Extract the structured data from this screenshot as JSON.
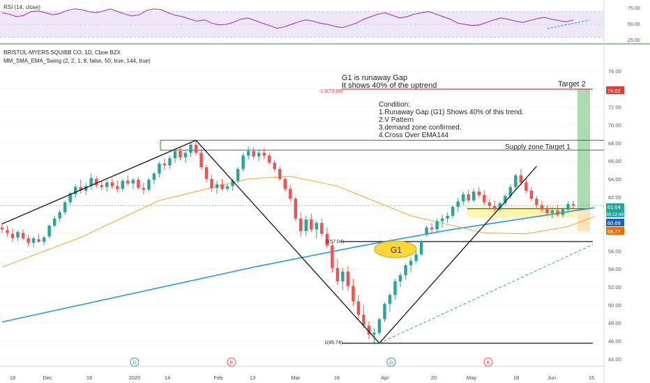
{
  "rsi_panel": {
    "label": "RSI (14, close)",
    "ticks": [
      "75.00",
      "50.00",
      "25.00"
    ],
    "ylim": [
      25,
      78
    ],
    "band": [
      30,
      70
    ],
    "values": [
      68,
      66,
      62,
      64,
      70,
      71,
      68,
      65,
      67,
      72,
      74,
      73,
      70,
      68,
      71,
      74,
      70,
      66,
      63,
      65,
      72,
      74,
      73,
      68,
      64,
      62,
      58,
      55,
      57,
      52,
      49,
      50,
      53,
      58,
      60,
      56,
      52,
      48,
      44,
      46,
      50,
      54,
      57,
      55,
      52,
      50,
      47,
      45,
      48,
      52,
      58,
      62,
      66,
      68,
      64,
      60,
      62,
      66,
      68,
      70,
      66,
      62,
      58,
      52,
      50,
      48,
      49,
      53,
      57,
      60,
      58,
      55,
      53,
      56,
      59,
      61,
      58,
      56,
      54,
      57
    ]
  },
  "header": {
    "symbol": "BRISTOL-MYERS SQUIBB CO, 1D, Cboe BZX",
    "indicator": "MM_SMA_EMA_Swing (2, 2, 1, 8, false, 50, true, 144, true)"
  },
  "annotations": {
    "gap_line1": "G1 is runaway Gap",
    "gap_line2": "It shows 40% of the uptrend",
    "target2": "Target 2",
    "fib_neg": "-1.5(73.98)",
    "condition_title": "Condition:",
    "cond1": "1.Runaway Gap (G1) Shows 40% of this trend.",
    "cond2": "2.V Pattern",
    "cond3": "3.demand zone confirmed.",
    "cond4": "4.Cross Over EMA144",
    "supply": "Supply zone Target 1",
    "fib0": "0(57.04)",
    "fib1": "1(45.74)",
    "g1": "G1"
  },
  "price_badges": {
    "target": "74.02",
    "last": "61.04",
    "countdown": "05:12:49",
    "ma": "60.69",
    "stop": "58.77"
  },
  "colors": {
    "bull": "#26a69a",
    "bear": "#ef5350",
    "ema144": "#2196f3",
    "sma50": "#f5a623",
    "rsi": "#9c27b0",
    "rsi_band": "#ede7f6",
    "target_line": "#e53935",
    "supply_line": "#2e7d32",
    "demand_zone": "#fff59d",
    "tp_zone": "#a5d6a7",
    "sl_zone": "#ffe0b2",
    "g1_fill": "#fdd835"
  },
  "chart_data": {
    "type": "candlestick",
    "ylim": [
      43,
      78.5
    ],
    "y_ticks": [
      "76.00",
      "74.00",
      "72.00",
      "70.00",
      "68.00",
      "66.00",
      "64.00",
      "62.00",
      "60.00",
      "58.00",
      "56.00",
      "54.00",
      "52.00",
      "50.00",
      "48.00",
      "46.00",
      "44.00"
    ],
    "x_ticks": [
      "18",
      "Dec",
      "16",
      "2020",
      "14",
      "Feb",
      "13",
      "Mar",
      "16",
      "Apr",
      "20",
      "May",
      "18",
      "Jun",
      "15"
    ],
    "events": [
      "D",
      "E",
      "E",
      "D",
      "E"
    ],
    "candles": [
      [
        58.6,
        59.2,
        58.0,
        58.4
      ],
      [
        58.3,
        58.8,
        57.6,
        58.0
      ],
      [
        57.9,
        58.5,
        57.0,
        57.4
      ],
      [
        57.5,
        58.3,
        57.1,
        58.1
      ],
      [
        58.0,
        58.4,
        57.2,
        57.4
      ],
      [
        57.4,
        57.8,
        56.5,
        56.9
      ],
      [
        56.9,
        57.6,
        56.4,
        57.4
      ],
      [
        57.3,
        57.9,
        56.9,
        57.0
      ],
      [
        57.0,
        57.7,
        56.6,
        57.5
      ],
      [
        57.6,
        58.9,
        57.4,
        58.8
      ],
      [
        58.8,
        59.9,
        58.6,
        59.6
      ],
      [
        59.6,
        60.6,
        59.2,
        60.3
      ],
      [
        60.3,
        61.6,
        60.0,
        61.4
      ],
      [
        61.4,
        62.6,
        61.1,
        62.4
      ],
      [
        62.3,
        63.4,
        61.9,
        63.1
      ],
      [
        63.1,
        63.9,
        62.4,
        62.7
      ],
      [
        62.7,
        63.6,
        62.2,
        63.2
      ],
      [
        63.2,
        64.6,
        62.8,
        64.1
      ],
      [
        64.0,
        64.3,
        63.0,
        63.3
      ],
      [
        63.3,
        63.8,
        62.7,
        63.1
      ],
      [
        63.1,
        63.9,
        62.6,
        63.6
      ],
      [
        63.6,
        64.1,
        62.9,
        63.2
      ],
      [
        63.2,
        63.8,
        62.5,
        62.9
      ],
      [
        62.9,
        64.0,
        62.6,
        63.8
      ],
      [
        63.8,
        64.4,
        63.2,
        63.5
      ],
      [
        63.5,
        64.1,
        62.9,
        63.9
      ],
      [
        63.9,
        64.2,
        62.8,
        63.0
      ],
      [
        63.0,
        63.6,
        62.3,
        62.8
      ],
      [
        62.8,
        64.1,
        62.6,
        63.9
      ],
      [
        63.9,
        64.8,
        63.4,
        64.6
      ],
      [
        64.6,
        65.9,
        64.2,
        65.7
      ],
      [
        65.7,
        66.3,
        65.0,
        65.5
      ],
      [
        65.5,
        66.6,
        65.1,
        66.3
      ],
      [
        66.3,
        67.3,
        65.8,
        67.1
      ],
      [
        67.1,
        67.6,
        66.1,
        66.4
      ],
      [
        66.4,
        67.2,
        65.8,
        66.9
      ],
      [
        66.9,
        68.1,
        66.4,
        67.8
      ],
      [
        67.8,
        68.2,
        66.6,
        66.9
      ],
      [
        66.9,
        67.3,
        65.1,
        65.3
      ],
      [
        65.3,
        65.6,
        63.6,
        64.0
      ],
      [
        64.0,
        64.5,
        62.6,
        63.0
      ],
      [
        63.0,
        63.8,
        62.3,
        63.4
      ],
      [
        63.4,
        64.0,
        62.7,
        62.9
      ],
      [
        62.9,
        63.4,
        62.6,
        63.2
      ],
      [
        63.2,
        64.0,
        62.7,
        63.8
      ],
      [
        63.8,
        65.3,
        63.5,
        65.1
      ],
      [
        65.1,
        66.9,
        64.8,
        66.6
      ],
      [
        66.6,
        67.6,
        66.1,
        67.1
      ],
      [
        67.1,
        67.5,
        66.2,
        66.5
      ],
      [
        66.5,
        67.3,
        66.0,
        66.9
      ],
      [
        66.9,
        67.4,
        66.2,
        66.6
      ],
      [
        66.6,
        66.9,
        65.6,
        65.8
      ],
      [
        65.8,
        66.1,
        64.8,
        65.1
      ],
      [
        65.1,
        65.4,
        63.8,
        64.0
      ],
      [
        64.0,
        64.2,
        62.6,
        62.9
      ],
      [
        62.9,
        63.3,
        61.5,
        61.8
      ],
      [
        61.8,
        62.0,
        59.3,
        59.6
      ],
      [
        59.6,
        60.3,
        57.6,
        58.2
      ],
      [
        58.2,
        59.9,
        57.7,
        59.5
      ],
      [
        59.5,
        60.1,
        58.1,
        58.4
      ],
      [
        58.4,
        59.4,
        57.4,
        59.1
      ],
      [
        59.1,
        59.6,
        57.6,
        57.9
      ],
      [
        57.9,
        58.6,
        56.3,
        56.6
      ],
      [
        56.6,
        56.9,
        53.6,
        54.1
      ],
      [
        54.1,
        55.1,
        52.2,
        52.6
      ],
      [
        52.6,
        54.1,
        51.6,
        53.7
      ],
      [
        53.7,
        54.3,
        51.6,
        52.1
      ],
      [
        52.1,
        52.9,
        49.9,
        50.4
      ],
      [
        50.4,
        51.1,
        48.4,
        48.9
      ],
      [
        48.9,
        49.9,
        47.4,
        47.7
      ],
      [
        47.7,
        48.2,
        46.2,
        46.7
      ],
      [
        46.7,
        47.4,
        45.8,
        46.9
      ],
      [
        46.9,
        48.6,
        46.6,
        48.4
      ],
      [
        48.4,
        50.3,
        48.1,
        50.1
      ],
      [
        50.1,
        51.3,
        49.3,
        51.1
      ],
      [
        51.1,
        52.9,
        50.6,
        52.6
      ],
      [
        52.6,
        53.6,
        52.0,
        53.3
      ],
      [
        53.3,
        54.6,
        52.8,
        54.4
      ],
      [
        54.4,
        55.3,
        53.6,
        54.9
      ],
      [
        54.9,
        55.9,
        54.6,
        55.6
      ],
      [
        55.6,
        57.3,
        55.4,
        57.1
      ],
      [
        57.8,
        58.8,
        57.6,
        58.6
      ],
      [
        58.6,
        59.1,
        57.9,
        58.4
      ],
      [
        58.4,
        59.6,
        58.1,
        59.3
      ],
      [
        59.3,
        60.0,
        58.6,
        59.6
      ],
      [
        59.6,
        60.3,
        59.1,
        59.9
      ],
      [
        59.9,
        61.1,
        59.6,
        60.9
      ],
      [
        60.9,
        61.9,
        60.3,
        61.5
      ],
      [
        61.5,
        62.6,
        61.1,
        62.3
      ],
      [
        62.3,
        62.8,
        61.3,
        61.6
      ],
      [
        61.6,
        62.9,
        61.4,
        62.6
      ],
      [
        62.6,
        63.1,
        61.9,
        62.2
      ],
      [
        62.2,
        62.7,
        61.1,
        61.4
      ],
      [
        61.4,
        61.8,
        60.6,
        61.0
      ],
      [
        61.0,
        61.6,
        60.3,
        60.6
      ],
      [
        60.6,
        61.5,
        60.4,
        61.3
      ],
      [
        61.3,
        62.3,
        61.0,
        62.1
      ],
      [
        62.1,
        63.4,
        61.8,
        63.1
      ],
      [
        63.1,
        64.6,
        62.8,
        64.4
      ],
      [
        64.4,
        65.1,
        63.3,
        63.6
      ],
      [
        63.6,
        64.1,
        62.4,
        62.7
      ],
      [
        62.7,
        63.1,
        61.5,
        61.8
      ],
      [
        61.8,
        62.1,
        60.8,
        61.1
      ],
      [
        61.1,
        61.6,
        60.3,
        60.6
      ],
      [
        60.6,
        61.1,
        59.9,
        60.2
      ],
      [
        60.2,
        60.9,
        59.6,
        60.5
      ],
      [
        60.5,
        61.1,
        59.8,
        60.0
      ],
      [
        60.0,
        60.8,
        59.7,
        60.6
      ],
      [
        60.6,
        61.5,
        60.3,
        61.2
      ],
      [
        61.2,
        61.6,
        60.7,
        61.04
      ]
    ],
    "ema144": [
      [
        0,
        48.1
      ],
      [
        48,
        54.2
      ],
      [
        68,
        56.5
      ],
      [
        85,
        58.3
      ],
      [
        113,
        60.8
      ]
    ],
    "sma50": [
      [
        0,
        54.2
      ],
      [
        15,
        57.5
      ],
      [
        30,
        61.6
      ],
      [
        47,
        64.0
      ],
      [
        55,
        64.3
      ],
      [
        64,
        63.2
      ],
      [
        78,
        59.9
      ],
      [
        92,
        58.0
      ],
      [
        100,
        57.9
      ],
      [
        108,
        58.7
      ],
      [
        113,
        59.8
      ]
    ],
    "swing_lines": [
      {
        "from": [
          0,
          59.0
        ],
        "to": [
          37,
          68.3
        ]
      },
      {
        "from": [
          37,
          68.3
        ],
        "to": [
          72,
          45.74
        ]
      },
      {
        "from": [
          72,
          45.74
        ],
        "to": [
          102,
          65.4
        ]
      }
    ],
    "trend_projection": {
      "from": [
        72,
        45.74
      ],
      "to": [
        117,
        56.7
      ]
    },
    "fib_levels": [
      {
        "label": "0(57.04)",
        "value": 57.04
      },
      {
        "label": "1(45.74)",
        "value": 45.74
      },
      {
        "label": "-1.5(73.98)",
        "value": 73.98
      }
    ],
    "supply_zone": [
      67.2,
      68.3
    ],
    "demand_zone": [
      59.7,
      60.9
    ],
    "position": {
      "entry": 60.69,
      "target": 74.02,
      "stop": 58.77
    }
  }
}
